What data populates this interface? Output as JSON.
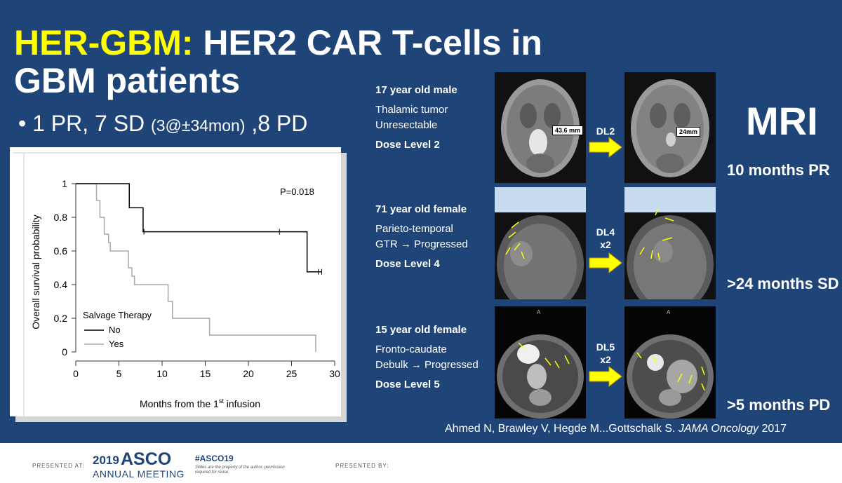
{
  "title": {
    "highlight": "HER-GBM:",
    "rest_line1": " HER2 CAR T-cells in",
    "line2": "GBM patients"
  },
  "bullet": {
    "marker": "•",
    "part1": "1 PR, 7 SD ",
    "part2": "(3@±34mon)",
    "part3": " ,8 PD"
  },
  "chart_data": {
    "type": "line",
    "step": true,
    "xlabel": "Months from the 1st infusion",
    "xlabel_parts": {
      "pre": "Months from the 1",
      "sup": "st",
      "post": " infusion"
    },
    "ylabel": "Overall survival probability",
    "xlim": [
      0,
      30
    ],
    "ylim": [
      0,
      1
    ],
    "xticks": [
      "0",
      "5",
      "10",
      "15",
      "20",
      "25",
      "30"
    ],
    "yticks": [
      "0",
      "0.2",
      "0.4",
      "0.6",
      "0.8",
      "1"
    ],
    "annotation": "P=0.018",
    "legend": {
      "title": "Salvage Therapy",
      "position": "bottom-left"
    },
    "series": [
      {
        "name": "No",
        "color": "#000000",
        "x": [
          0,
          6.2,
          6.2,
          7.8,
          7.8,
          26.8,
          26.8,
          28.5
        ],
        "y": [
          1,
          1,
          0.857,
          0.857,
          0.714,
          0.714,
          0.476,
          0.476
        ],
        "censored": [
          [
            7.9,
            0.714
          ],
          [
            23.6,
            0.714
          ],
          [
            28.1,
            0.476
          ],
          [
            28.5,
            0.476
          ]
        ]
      },
      {
        "name": "Yes",
        "color": "#aaaaaa",
        "x": [
          0,
          2.4,
          2.4,
          2.8,
          2.8,
          3.3,
          3.3,
          3.8,
          3.8,
          4.0,
          4.0,
          6.1,
          6.1,
          6.5,
          6.5,
          6.8,
          6.8,
          10.7,
          10.7,
          11.2,
          11.2,
          15.5,
          15.5,
          27.8,
          27.8
        ],
        "y": [
          1,
          1,
          0.9,
          0.9,
          0.8,
          0.8,
          0.7,
          0.7,
          0.65,
          0.65,
          0.6,
          0.6,
          0.5,
          0.5,
          0.45,
          0.45,
          0.4,
          0.4,
          0.3,
          0.3,
          0.2,
          0.2,
          0.1,
          0.1,
          0
        ]
      }
    ]
  },
  "cases": [
    {
      "title": "17 year old male",
      "line1": "Thalamic tumor",
      "line2": "Unresectable",
      "dose": "Dose Level 2",
      "arrow_label_1": "DL2",
      "arrow_label_2": "",
      "measure_pre": "43.6 mm",
      "measure_post": "24mm",
      "outcome": "10 months PR"
    },
    {
      "title": "71 year old female",
      "line1": "Parieto-temporal",
      "line2": "GTR → Progressed",
      "dose": "Dose Level 4",
      "arrow_label_1": "DL4",
      "arrow_label_2": "x2",
      "outcome": ">24 months SD"
    },
    {
      "title": "15 year old female",
      "line1": "Fronto-caudate",
      "line2": "Debulk → Progressed",
      "dose": "Dose Level 5",
      "arrow_label_1": "DL5",
      "arrow_label_2": "x2",
      "scan_marker": "A",
      "outcome": ">5 months PD"
    }
  ],
  "mri_label": "MRI",
  "citation": {
    "authors": "Ahmed N, Brawley V, Hegde M...Gottschalk S. ",
    "journal": "JAMA Oncology",
    "year": " 2017"
  },
  "footer": {
    "presented_at": "PRESENTED AT:",
    "asco_year": "2019",
    "asco_name": "ASCO",
    "asco_sub": "ANNUAL MEETING",
    "hashtag": "#ASCO19",
    "fine_print": "Slides are the property of the author, permission required for reuse.",
    "presented_by": "PRESENTED BY:"
  },
  "colors": {
    "background": "#1f4477",
    "highlight": "#ffff00",
    "arrow": "#ffff00"
  }
}
